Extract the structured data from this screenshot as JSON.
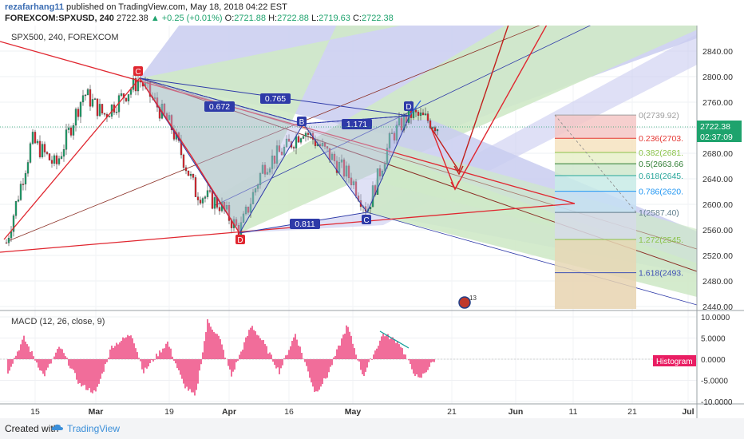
{
  "header": {
    "username": "rezafarhang11",
    "published_text": "published on TradingView.com, May 18, 2018 04:22 EST",
    "symbol_line": "FOREXCOM:SPXUSD, 240",
    "last_price": "2722.38",
    "change": "▲ +0.25 (+0.01%)",
    "ohlc": {
      "o_label": "O:",
      "o": "2721.88",
      "h_label": "H:",
      "h": "2722.88",
      "l_label": "L:",
      "l": "2719.63",
      "c_label": "C:",
      "c": "2722.38"
    }
  },
  "chart_label": "SPX500, 240, FOREXCOM",
  "macd_label": "MACD (12, 26, close, 9)",
  "histogram_badge": "Histogram",
  "price_badge": "2722.38",
  "time_badge": "02:37:09",
  "event_badge": "13",
  "footer": {
    "created_with": "Created with",
    "brand": "TradingView"
  },
  "colors": {
    "up": "#1ea36d",
    "red": "#e0262f",
    "blue": "#2e3aa8",
    "macd": "#e91e63"
  },
  "chart_data": [
    {
      "type": "line",
      "title": "SPX500, 240, FOREXCOM",
      "y_ticks": [
        2840,
        2800,
        2760,
        2720,
        2680,
        2640,
        2600,
        2560,
        2520,
        2480,
        2440
      ],
      "y_tick_labels": [
        "2840.00",
        "2800.00",
        "2760.00",
        "2720.00",
        "2680.00",
        "2640.00",
        "2600.00",
        "2560.00",
        "2520.00",
        "2480.00",
        "2440.00"
      ],
      "ylim": [
        2430,
        2875
      ],
      "x_tick_labels": [
        "15",
        "Mar",
        "19",
        "Apr",
        "16",
        "May",
        "21",
        "Jun",
        "11",
        "21",
        "Jul"
      ],
      "pattern_points": [
        {
          "label": "C",
          "date": "Mar 9",
          "price": 2795
        },
        {
          "label": "D",
          "date": "Apr 2",
          "price": 2557
        },
        {
          "label": "B",
          "date": "Apr 18",
          "price": 2718
        },
        {
          "label": "C",
          "date": "May 3",
          "price": 2592
        },
        {
          "label": "D",
          "date": "May 14",
          "price": 2742
        }
      ],
      "ratio_labels": [
        "0.672",
        "0.765",
        "1.171",
        "0.811"
      ],
      "fibonacci_levels": [
        {
          "ratio": "0",
          "price": "2739.92",
          "text": "0(2739.92)"
        },
        {
          "ratio": "0.236",
          "price": "2703.",
          "text": "0.236(2703."
        },
        {
          "ratio": "0.382",
          "price": "2681.",
          "text": "0.382(2681."
        },
        {
          "ratio": "0.5",
          "price": "2663.66",
          "text": "0.5(2663.66"
        },
        {
          "ratio": "0.618",
          "price": "2645.",
          "text": "0.618(2645."
        },
        {
          "ratio": "0.786",
          "price": "2620.",
          "text": "0.786(2620."
        },
        {
          "ratio": "1",
          "price": "2587.40",
          "text": "1(2587.40)"
        },
        {
          "ratio": "1.272",
          "price": "2545.",
          "text": "1.272(2545."
        },
        {
          "ratio": "1.618",
          "price": "2493.",
          "text": "1.618(2493."
        }
      ],
      "current_price": 2722.38,
      "grid": true
    },
    {
      "type": "bar",
      "title": "MACD (12, 26, close, 9)",
      "series_name": "Histogram",
      "y_ticks": [
        10,
        5,
        0,
        -5,
        -10
      ],
      "y_tick_labels": [
        "10.0000",
        "5.0000",
        "0.0000",
        "-5.0000",
        "-10.0000"
      ],
      "ylim": [
        -10.5,
        10.5
      ]
    }
  ]
}
